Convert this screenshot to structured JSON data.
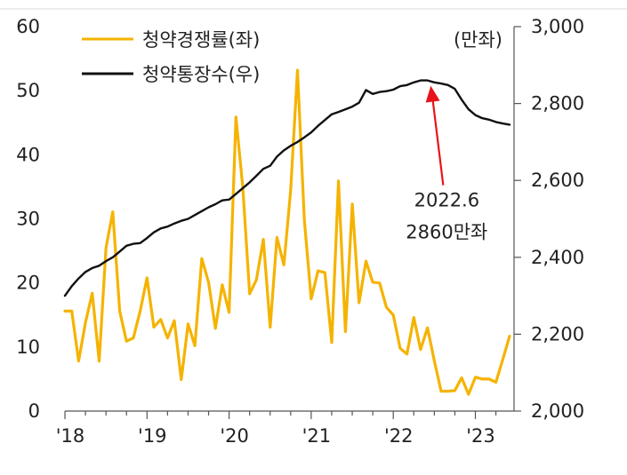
{
  "chart_data": {
    "type": "line",
    "x_ticks": [
      "'18",
      "'19",
      "'20",
      "'21",
      "'22",
      "'23"
    ],
    "x_range": [
      2018.0,
      2023.417
    ],
    "left_axis": {
      "unit": "",
      "range": [
        0,
        60
      ],
      "ticks": [
        "0",
        "10",
        "20",
        "30",
        "40",
        "50",
        "60"
      ]
    },
    "right_axis": {
      "unit": "(만좌)",
      "range": [
        2000,
        3000
      ],
      "ticks": [
        "2,000",
        "2,200",
        "2,400",
        "2,600",
        "2,800",
        "3,000"
      ]
    },
    "legend_position": "top-left",
    "grid": false,
    "series": [
      {
        "name": "청약경쟁률(좌)",
        "axis": "left",
        "color": "#F5B301",
        "x": [
          2018.0,
          2018.083,
          2018.167,
          2018.25,
          2018.333,
          2018.417,
          2018.5,
          2018.583,
          2018.667,
          2018.75,
          2018.833,
          2018.917,
          2019.0,
          2019.083,
          2019.167,
          2019.25,
          2019.333,
          2019.417,
          2019.5,
          2019.583,
          2019.667,
          2019.75,
          2019.833,
          2019.917,
          2020.0,
          2020.083,
          2020.167,
          2020.25,
          2020.333,
          2020.417,
          2020.5,
          2020.583,
          2020.667,
          2020.75,
          2020.833,
          2020.917,
          2021.0,
          2021.083,
          2021.167,
          2021.25,
          2021.333,
          2021.417,
          2021.5,
          2021.583,
          2021.667,
          2021.75,
          2021.833,
          2021.917,
          2022.0,
          2022.083,
          2022.167,
          2022.25,
          2022.333,
          2022.417,
          2022.5,
          2022.583,
          2022.667,
          2022.75,
          2022.833,
          2022.917,
          2023.0,
          2023.083,
          2023.167,
          2023.25,
          2023.333,
          2023.417
        ],
        "values": [
          15.6,
          15.6,
          7.8,
          13.8,
          18.4,
          7.8,
          25.5,
          31.1,
          15.6,
          10.9,
          11.4,
          15.6,
          20.8,
          13.1,
          14.3,
          11.4,
          14.1,
          4.9,
          13.6,
          10.2,
          23.8,
          20.1,
          12.9,
          19.7,
          15.4,
          45.9,
          34.9,
          18.3,
          20.5,
          26.8,
          13.1,
          27.1,
          22.8,
          34.4,
          53.2,
          29.8,
          17.5,
          21.9,
          21.6,
          10.7,
          35.9,
          12.4,
          32.3,
          16.9,
          23.4,
          20.1,
          20.0,
          16.2,
          15.0,
          9.8,
          8.9,
          14.6,
          9.6,
          13.0,
          7.8,
          3.1,
          3.1,
          3.2,
          5.2,
          2.6,
          5.3,
          5.0,
          5.0,
          4.5,
          8.0,
          11.7
        ]
      },
      {
        "name": "청약통장수(우)",
        "axis": "right",
        "color": "#111111",
        "x": [
          2018.0,
          2018.083,
          2018.167,
          2018.25,
          2018.333,
          2018.417,
          2018.5,
          2018.583,
          2018.667,
          2018.75,
          2018.833,
          2018.917,
          2019.0,
          2019.083,
          2019.167,
          2019.25,
          2019.333,
          2019.417,
          2019.5,
          2019.583,
          2019.667,
          2019.75,
          2019.833,
          2019.917,
          2020.0,
          2020.083,
          2020.167,
          2020.25,
          2020.333,
          2020.417,
          2020.5,
          2020.583,
          2020.667,
          2020.75,
          2020.833,
          2020.917,
          2021.0,
          2021.083,
          2021.167,
          2021.25,
          2021.333,
          2021.417,
          2021.5,
          2021.583,
          2021.667,
          2021.75,
          2021.833,
          2021.917,
          2022.0,
          2022.083,
          2022.167,
          2022.25,
          2022.333,
          2022.417,
          2022.5,
          2022.583,
          2022.667,
          2022.75,
          2022.833,
          2022.917,
          2023.0,
          2023.083,
          2023.167,
          2023.25,
          2023.333,
          2023.417
        ],
        "values": [
          2300,
          2325,
          2345,
          2362,
          2372,
          2378,
          2390,
          2400,
          2415,
          2430,
          2435,
          2437,
          2450,
          2465,
          2475,
          2480,
          2488,
          2495,
          2500,
          2510,
          2520,
          2530,
          2538,
          2548,
          2550,
          2565,
          2580,
          2595,
          2612,
          2630,
          2638,
          2662,
          2678,
          2690,
          2700,
          2712,
          2725,
          2742,
          2757,
          2772,
          2778,
          2785,
          2792,
          2802,
          2835,
          2825,
          2830,
          2832,
          2836,
          2845,
          2848,
          2855,
          2860,
          2860,
          2855,
          2852,
          2848,
          2838,
          2810,
          2785,
          2770,
          2762,
          2758,
          2752,
          2748,
          2745
        ]
      }
    ],
    "annotation": {
      "x": 2022.5,
      "y_right": 2860,
      "lines": [
        "2022.6",
        "2860만좌"
      ],
      "color": "#E8141B"
    }
  }
}
